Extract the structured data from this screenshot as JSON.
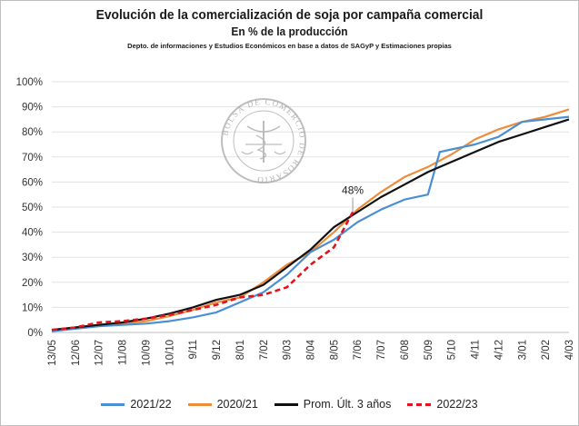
{
  "header": {
    "title": "Evolución de la comercialización de soja por campaña comercial",
    "subtitle": "En % de la producción",
    "source": "Depto. de informaciones y Estudios Económicos en base a datos de SAGyP y Estimaciones propias"
  },
  "watermark": {
    "text": "BOLSA DE COMERCIO DE ROSARIO"
  },
  "chart_data": {
    "type": "line",
    "title": "Evolución de la comercialización de soja por campaña comercial",
    "subtitle": "En % de la producción",
    "xlabel": "",
    "ylabel": "",
    "ylim": [
      0,
      100
    ],
    "grid": true,
    "legend_position": "bottom",
    "x_ticks": [
      "13/05",
      "12/06",
      "12/07",
      "11/08",
      "10/09",
      "10/10",
      "9/11",
      "9/12",
      "8/01",
      "7/02",
      "9/03",
      "8/04",
      "8/05",
      "7/06",
      "7/07",
      "6/08",
      "5/09",
      "5/10",
      "4/11",
      "4/12",
      "3/01",
      "2/02",
      "4/03"
    ],
    "y_ticks": [
      "0%",
      "10%",
      "20%",
      "30%",
      "40%",
      "50%",
      "60%",
      "70%",
      "80%",
      "90%",
      "100%"
    ],
    "annotation": {
      "text": "48%",
      "x": 12.8,
      "y": 48
    },
    "series": [
      {
        "name": "2021/22",
        "color": "#4a8fd4",
        "dashed": false,
        "x": [
          0,
          1,
          2,
          3,
          4,
          5,
          6,
          7,
          8,
          9,
          10,
          11,
          12,
          13,
          14,
          15,
          16,
          16.5,
          17,
          18,
          19,
          20,
          21,
          22
        ],
        "y": [
          0.5,
          1.5,
          2.5,
          3,
          3.5,
          4.5,
          6,
          8,
          12,
          16,
          23,
          32,
          37,
          44,
          49,
          53,
          55,
          72,
          73,
          75,
          78,
          84,
          85,
          86
        ]
      },
      {
        "name": "2020/21",
        "color": "#ed8d3a",
        "dashed": false,
        "x": [
          0,
          1,
          2,
          3,
          4,
          5,
          6,
          7,
          8,
          9,
          10,
          11,
          12,
          13,
          14,
          15,
          16,
          17,
          18,
          19,
          20,
          21,
          22
        ],
        "y": [
          1,
          2,
          3,
          3.5,
          4.5,
          6.5,
          9,
          12,
          14,
          20,
          27,
          32,
          40,
          49,
          56,
          62,
          66,
          71,
          77,
          81,
          84,
          86,
          89
        ]
      },
      {
        "name": "Prom. Últ. 3 años",
        "color": "#111111",
        "dashed": false,
        "x": [
          0,
          1,
          2,
          3,
          4,
          5,
          6,
          7,
          8,
          9,
          10,
          11,
          12,
          13,
          14,
          15,
          16,
          17,
          18,
          19,
          20,
          21,
          22
        ],
        "y": [
          1,
          2,
          3,
          4,
          5.5,
          7.5,
          10,
          13,
          15,
          19,
          26,
          33,
          42,
          48,
          54,
          59,
          64,
          68,
          72,
          76,
          79,
          82,
          85
        ]
      },
      {
        "name": "2022/23",
        "color": "#e0141e",
        "dashed": true,
        "x": [
          0,
          1,
          2,
          3,
          4,
          5,
          6,
          7,
          8,
          9,
          10,
          11,
          12,
          12.8
        ],
        "y": [
          1,
          2,
          4,
          4.5,
          5.5,
          7,
          9,
          11,
          14,
          15,
          18,
          27,
          34,
          48
        ]
      }
    ]
  }
}
